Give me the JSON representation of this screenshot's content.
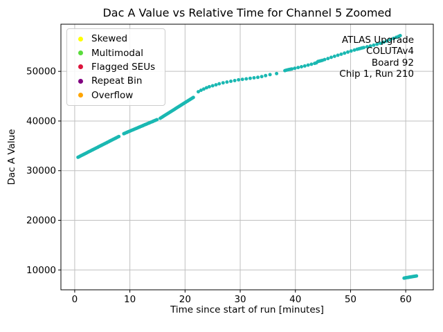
{
  "colors": {
    "background": "#ffffff",
    "scatter": "#1ab8b2",
    "grid": "#bfbfbf",
    "spine": "#000000",
    "legend_border": "#cccccc"
  },
  "legend": {
    "items": [
      {
        "label": "Skewed",
        "color": "#ffff00"
      },
      {
        "label": "Multimodal",
        "color": "#5adc3c"
      },
      {
        "label": "Flagged SEUs",
        "color": "#dc143c"
      },
      {
        "label": "Repeat Bin",
        "color": "#800080"
      },
      {
        "label": "Overflow",
        "color": "#ffa500"
      }
    ]
  },
  "annotation": {
    "lines": [
      "ATLAS Upgrade",
      "COLUTAv4",
      "Board 92",
      "Chip 1, Run 210"
    ]
  },
  "chart_data": {
    "type": "scatter",
    "title": "Dac A Value vs Relative Time for Channel 5 Zoomed",
    "xlabel": "Time since start of run [minutes]",
    "ylabel": "Dac A Value",
    "xlim": [
      -2.5,
      65
    ],
    "ylim": [
      6000,
      59500
    ],
    "xticks": [
      0,
      10,
      20,
      30,
      40,
      50,
      60
    ],
    "yticks": [
      10000,
      20000,
      30000,
      40000,
      50000
    ],
    "grid": true,
    "legend_position": "upper left",
    "series": [
      {
        "name": "channel-5-dac-a",
        "color": "#1ab8b2",
        "marker_radius": 2.5,
        "points": [
          [
            0.6,
            32700
          ],
          [
            0.8,
            32810
          ],
          [
            1.0,
            32930
          ],
          [
            1.2,
            33040
          ],
          [
            1.4,
            33150
          ],
          [
            1.6,
            33270
          ],
          [
            1.8,
            33380
          ],
          [
            2.0,
            33490
          ],
          [
            2.2,
            33600
          ],
          [
            2.4,
            33720
          ],
          [
            2.6,
            33830
          ],
          [
            2.8,
            33940
          ],
          [
            3.0,
            34060
          ],
          [
            3.2,
            34170
          ],
          [
            3.4,
            34280
          ],
          [
            3.6,
            34400
          ],
          [
            3.8,
            34510
          ],
          [
            4.0,
            34620
          ],
          [
            4.2,
            34730
          ],
          [
            4.4,
            34850
          ],
          [
            4.6,
            34960
          ],
          [
            4.8,
            35070
          ],
          [
            5.0,
            35190
          ],
          [
            5.2,
            35300
          ],
          [
            5.4,
            35410
          ],
          [
            5.6,
            35520
          ],
          [
            5.8,
            35640
          ],
          [
            6.0,
            35750
          ],
          [
            6.2,
            35860
          ],
          [
            6.4,
            35980
          ],
          [
            6.6,
            36090
          ],
          [
            6.8,
            36200
          ],
          [
            7.0,
            36310
          ],
          [
            7.2,
            36430
          ],
          [
            7.4,
            36540
          ],
          [
            7.6,
            36650
          ],
          [
            7.8,
            36770
          ],
          [
            8.0,
            36880
          ],
          [
            8.9,
            37450
          ],
          [
            9.1,
            37540
          ],
          [
            9.3,
            37640
          ],
          [
            9.5,
            37730
          ],
          [
            9.7,
            37830
          ],
          [
            9.9,
            37920
          ],
          [
            10.1,
            38010
          ],
          [
            10.3,
            38110
          ],
          [
            10.5,
            38200
          ],
          [
            10.7,
            38300
          ],
          [
            10.9,
            38390
          ],
          [
            11.1,
            38480
          ],
          [
            11.3,
            38580
          ],
          [
            11.5,
            38670
          ],
          [
            11.7,
            38770
          ],
          [
            11.9,
            38860
          ],
          [
            12.1,
            38950
          ],
          [
            12.3,
            39050
          ],
          [
            12.5,
            39140
          ],
          [
            12.7,
            39240
          ],
          [
            12.9,
            39330
          ],
          [
            13.1,
            39420
          ],
          [
            13.3,
            39520
          ],
          [
            13.5,
            39610
          ],
          [
            13.7,
            39710
          ],
          [
            13.9,
            39800
          ],
          [
            14.1,
            39890
          ],
          [
            14.3,
            39990
          ],
          [
            14.5,
            40080
          ],
          [
            14.7,
            40180
          ],
          [
            14.9,
            40270
          ],
          [
            15.5,
            40550
          ],
          [
            15.7,
            40690
          ],
          [
            15.9,
            40830
          ],
          [
            16.1,
            40970
          ],
          [
            16.3,
            41110
          ],
          [
            16.5,
            41250
          ],
          [
            16.7,
            41390
          ],
          [
            16.9,
            41530
          ],
          [
            17.1,
            41670
          ],
          [
            17.3,
            41810
          ],
          [
            17.5,
            41950
          ],
          [
            17.7,
            42090
          ],
          [
            17.9,
            42230
          ],
          [
            18.1,
            42370
          ],
          [
            18.3,
            42510
          ],
          [
            18.5,
            42650
          ],
          [
            18.7,
            42790
          ],
          [
            18.9,
            42930
          ],
          [
            19.1,
            43070
          ],
          [
            19.3,
            43210
          ],
          [
            19.5,
            43350
          ],
          [
            19.7,
            43490
          ],
          [
            19.9,
            43630
          ],
          [
            20.1,
            43770
          ],
          [
            20.3,
            43910
          ],
          [
            20.5,
            44050
          ],
          [
            20.7,
            44190
          ],
          [
            20.9,
            44330
          ],
          [
            21.1,
            44470
          ],
          [
            21.3,
            44610
          ],
          [
            21.5,
            44750
          ],
          [
            22.4,
            45900
          ],
          [
            22.9,
            46200
          ],
          [
            23.4,
            46450
          ],
          [
            23.9,
            46700
          ],
          [
            24.4,
            46900
          ],
          [
            25.0,
            47100
          ],
          [
            25.6,
            47300
          ],
          [
            26.2,
            47500
          ],
          [
            26.9,
            47700
          ],
          [
            27.6,
            47850
          ],
          [
            28.3,
            48000
          ],
          [
            29.0,
            48150
          ],
          [
            29.7,
            48300
          ],
          [
            30.4,
            48400
          ],
          [
            31.1,
            48500
          ],
          [
            31.8,
            48600
          ],
          [
            32.5,
            48700
          ],
          [
            33.2,
            48800
          ],
          [
            33.9,
            48950
          ],
          [
            34.6,
            49150
          ],
          [
            35.4,
            49350
          ],
          [
            36.6,
            49550
          ],
          [
            38.1,
            50150
          ],
          [
            38.35,
            50230
          ],
          [
            38.6,
            50300
          ],
          [
            38.85,
            50370
          ],
          [
            39.1,
            50430
          ],
          [
            39.35,
            50490
          ],
          [
            39.9,
            50630
          ],
          [
            40.5,
            50780
          ],
          [
            41.1,
            50930
          ],
          [
            41.7,
            51080
          ],
          [
            42.3,
            51260
          ],
          [
            42.9,
            51440
          ],
          [
            43.5,
            51620
          ],
          [
            43.8,
            51710
          ],
          [
            44.1,
            51990
          ],
          [
            44.35,
            52060
          ],
          [
            44.6,
            52130
          ],
          [
            44.9,
            52230
          ],
          [
            45.3,
            52380
          ],
          [
            45.9,
            52590
          ],
          [
            46.5,
            52830
          ],
          [
            47.1,
            53040
          ],
          [
            47.7,
            53250
          ],
          [
            48.3,
            53460
          ],
          [
            48.9,
            53670
          ],
          [
            49.5,
            53880
          ],
          [
            50.1,
            54090
          ],
          [
            50.7,
            54290
          ],
          [
            51.2,
            54450
          ],
          [
            51.5,
            54540
          ],
          [
            51.8,
            54630
          ],
          [
            52.1,
            54720
          ],
          [
            52.4,
            54810
          ],
          [
            53.0,
            54960
          ],
          [
            53.6,
            55110
          ],
          [
            54.2,
            55280
          ],
          [
            54.8,
            55460
          ],
          [
            55.4,
            55660
          ],
          [
            56.0,
            55880
          ],
          [
            56.6,
            56120
          ],
          [
            57.2,
            56380
          ],
          [
            57.8,
            56650
          ],
          [
            58.3,
            56870
          ],
          [
            58.7,
            57050
          ],
          [
            59.0,
            57200
          ],
          [
            59.7,
            8350
          ],
          [
            59.85,
            8380
          ],
          [
            60.0,
            8420
          ],
          [
            60.15,
            8450
          ],
          [
            60.3,
            8480
          ],
          [
            60.45,
            8500
          ],
          [
            60.6,
            8530
          ],
          [
            60.75,
            8560
          ],
          [
            60.9,
            8590
          ],
          [
            61.05,
            8620
          ],
          [
            61.2,
            8650
          ],
          [
            61.35,
            8680
          ],
          [
            61.5,
            8700
          ],
          [
            61.65,
            8730
          ],
          [
            61.8,
            8760
          ],
          [
            61.95,
            8790
          ]
        ]
      }
    ]
  }
}
